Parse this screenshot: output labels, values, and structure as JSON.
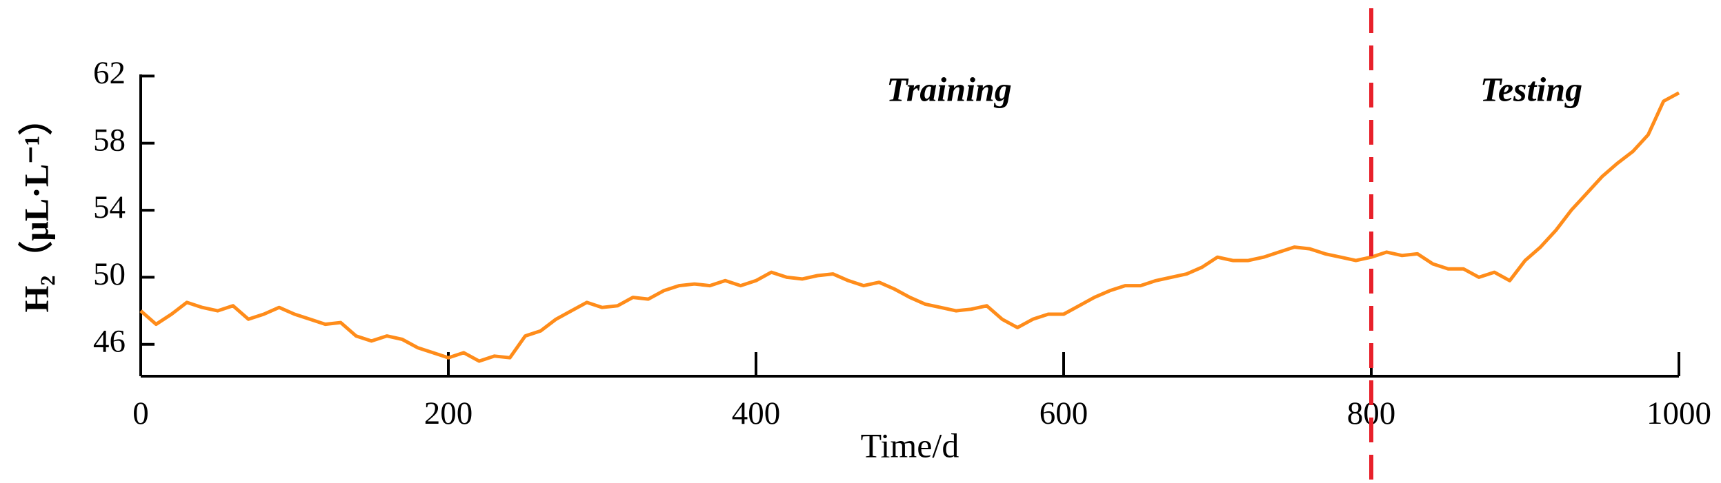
{
  "chart_data": {
    "type": "line",
    "x_label": "Time/d",
    "y_label": "H₂（μL·L⁻¹）",
    "annotations": [
      "Training",
      "Testing"
    ],
    "split": 800,
    "x": [
      0,
      10,
      20,
      30,
      40,
      50,
      60,
      70,
      80,
      90,
      100,
      110,
      120,
      130,
      140,
      150,
      160,
      170,
      180,
      190,
      200,
      210,
      220,
      230,
      240,
      250,
      260,
      270,
      280,
      290,
      300,
      310,
      320,
      330,
      340,
      350,
      360,
      370,
      380,
      390,
      400,
      410,
      420,
      430,
      440,
      450,
      460,
      470,
      480,
      490,
      500,
      510,
      520,
      530,
      540,
      550,
      560,
      570,
      580,
      590,
      600,
      610,
      620,
      630,
      640,
      650,
      660,
      670,
      680,
      690,
      700,
      710,
      720,
      730,
      740,
      750,
      760,
      770,
      780,
      790,
      800,
      810,
      820,
      830,
      840,
      850,
      860,
      870,
      880,
      890,
      900,
      910,
      920,
      930,
      940,
      950,
      960,
      970,
      980,
      990,
      1000
    ],
    "series": [
      {
        "color": "#ff8c1a",
        "values": [
          48,
          47.2,
          47.8,
          48.5,
          48.2,
          48,
          48.3,
          47.5,
          47.8,
          48.2,
          47.8,
          47.5,
          47.2,
          47.3,
          46.5,
          46.2,
          46.5,
          46.3,
          45.8,
          45.5,
          45.2,
          45.5,
          45.0,
          45.3,
          45.2,
          46.5,
          46.8,
          47.5,
          48.0,
          48.5,
          48.2,
          48.3,
          48.8,
          48.7,
          49.2,
          49.5,
          49.6,
          49.5,
          49.8,
          49.5,
          49.8,
          50.3,
          50.0,
          49.9,
          50.1,
          50.2,
          49.8,
          49.5,
          49.7,
          49.3,
          48.8,
          48.4,
          48.2,
          48.0,
          48.1,
          48.3,
          47.5,
          47.0,
          47.5,
          47.8,
          47.8,
          48.3,
          48.8,
          49.2,
          49.5,
          49.5,
          49.8,
          50.0,
          50.2,
          50.6,
          51.2,
          51.0,
          51.0,
          51.2,
          51.5,
          51.8,
          51.7,
          51.4,
          51.2,
          51.0,
          51.2,
          51.5,
          51.3,
          51.4,
          50.8,
          50.5,
          50.5,
          50.0,
          50.3,
          49.8,
          51.0,
          51.8,
          52.8,
          54.0,
          55.0,
          56.0,
          56.8,
          57.5,
          58.5,
          60.5,
          61.0
        ]
      }
    ],
    "split_color": "#e8202a",
    "xlim": [
      0,
      1000
    ],
    "xticks": [
      0,
      200,
      400,
      600,
      800,
      1000
    ],
    "ylim": [
      44.1,
      62.1
    ],
    "yticks": [
      46,
      50,
      54,
      58,
      62
    ]
  }
}
